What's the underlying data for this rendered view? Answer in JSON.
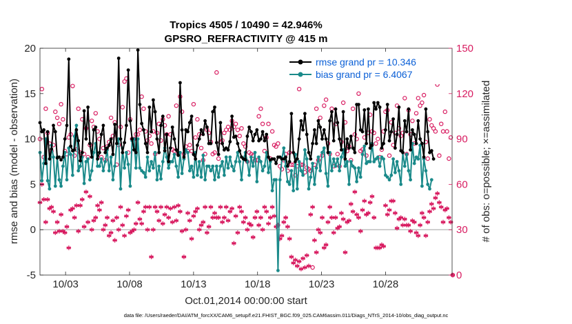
{
  "chart_data": {
    "type": "line",
    "title": "Tropics 4505 / 10490 = 42.946%",
    "subtitle": "GPSRO_REFRACTIVITY @ 415 m",
    "xlabel": "Oct.01,2014 00:00:00 start",
    "ylabel": "rmse and bias (model - observation)",
    "y2label": "# of obs: o=possible; ×=assimilated",
    "footnote": "data file: /Users/raeder/DAI/ATM_forcXX/CAM6_setup/f.e21.FHIST_BGC.f09_025.CAM6assim.011/Diags_NTrS_2014-10/obs_diag_output.nc",
    "xlim": [
      1,
      33.2
    ],
    "ylim": [
      -5,
      20
    ],
    "y2lim": [
      0,
      150
    ],
    "x_ticks": [
      3,
      8,
      13,
      18,
      23,
      28
    ],
    "x_tick_labels": [
      "10/03",
      "10/08",
      "10/13",
      "10/18",
      "10/23",
      "10/28"
    ],
    "y_ticks": [
      -5,
      0,
      5,
      10,
      15,
      20
    ],
    "y_tick_labels": [
      "-5",
      "0",
      "5",
      "10",
      "15",
      "20"
    ],
    "y2_ticks": [
      0,
      30,
      60,
      90,
      120,
      150
    ],
    "y2_tick_labels": [
      "0",
      "30",
      "60",
      "90",
      "120",
      "150"
    ],
    "zero_line": 0,
    "legend_location": "top-right",
    "colors": {
      "rmse": "#000000",
      "bias": "#1a8a8a",
      "obs": "#d81b60",
      "legend_text": "#0a5fd6",
      "zero_line": "#bfbfbf"
    },
    "series": [
      {
        "name": "rmse grand pr = 10.346",
        "key": "rmse",
        "values": [
          11.8,
          10.8,
          11.0,
          7.3,
          10.8,
          7.8,
          8.9,
          11.5,
          10.8,
          7.9,
          8.0,
          7.7,
          8.0,
          10.0,
          11.5,
          18.8,
          9.2,
          8.7,
          8.8,
          11.0,
          9.8,
          7.6,
          8.5,
          13.1,
          10.0,
          13.5,
          9.5,
          8.0,
          11.0,
          11.3,
          7.8,
          8.5,
          10.5,
          11.5,
          8.5,
          9.0,
          9.3,
          10.0,
          8.3,
          11.6,
          9.5,
          18.9,
          10.0,
          8.5,
          9.6,
          11.5,
          17.6,
          12.0,
          10.0,
          8.8,
          8.5,
          19.8,
          13.8,
          11.7,
          11.0,
          9.5,
          8.5,
          13.5,
          10.8,
          14.3,
          13.0,
          10.0,
          8.5,
          11.5,
          12.5,
          8.7,
          10.5,
          7.5,
          9.0,
          11.3,
          10.0,
          8.8,
          8.2,
          16.2,
          11.0,
          8.0,
          11.0,
          10.8,
          11.8,
          12.5,
          8.3,
          7.8,
          9.3,
          10.0,
          11.0,
          10.5,
          12.0,
          11.3,
          9.5,
          9.5,
          13.0,
          13.5,
          9.6,
          8.3,
          11.8,
          9.5,
          8.8,
          9.0,
          8.8,
          9.7,
          12.5,
          10.2,
          10.3,
          9.5,
          8.7,
          8.0,
          7.8,
          7.7,
          10.3,
          11.3,
          10.8,
          9.8,
          10.5,
          11.0,
          9.8,
          10.0,
          10.8,
          9.8,
          10.5,
          8.0,
          7.7,
          7.8,
          7.8,
          7.3,
          8.0,
          8.0,
          7.8,
          7.8,
          8.0,
          7.0,
          7.5,
          12.8,
          8.5,
          7.5,
          7.8,
          10.0,
          12.0,
          11.0,
          12.8,
          10.5,
          8.5,
          7.8,
          9.5,
          11.0,
          9.5,
          12.0,
          11.3,
          10.0,
          11.0,
          10.0,
          8.5,
          12.0,
          13.0,
          9.8,
          13.3,
          11.8,
          10.0,
          8.8,
          13.0,
          7.8,
          10.0,
          9.0,
          10.3,
          9.0,
          8.5,
          13.8,
          13.8,
          11.0,
          10.8,
          13.2,
          9.5,
          13.3,
          9.0,
          9.3,
          14.0,
          13.3,
          14.0,
          13.5,
          9.0,
          9.5,
          11.0,
          13.8,
          9.8,
          10.8,
          12.2,
          9.0,
          10.5,
          13.5,
          8.7,
          8.5,
          12.0,
          10.8,
          13.3,
          8.8,
          11.0,
          10.5,
          9.5,
          12.0,
          10.0,
          9.5,
          8.0,
          13.3,
          10.8,
          8.5,
          8.7,
          7.8
        ]
      },
      {
        "name": "bias grand pr = 6.4067",
        "key": "bias",
        "values": [
          8.5,
          5.4,
          7.3,
          10.0,
          5.4,
          4.5,
          9.3,
          8.0,
          4.8,
          8.0,
          5.5,
          4.8,
          7.0,
          8.5,
          5.5,
          9.0,
          8.3,
          6.0,
          10.3,
          11.5,
          6.5,
          7.0,
          8.0,
          5.1,
          7.5,
          7.8,
          5.5,
          6.5,
          8.5,
          9.5,
          7.0,
          7.0,
          7.8,
          6.5,
          7.5,
          8.8,
          6.5,
          8.0,
          5.5,
          7.0,
          9.5,
          10.0,
          4.5,
          9.0,
          6.8,
          8.5,
          7.2,
          4.8,
          9.8,
          10.0,
          6.8,
          10.0,
          6.8,
          6.5,
          6.3,
          5.8,
          8.0,
          6.5,
          7.5,
          6.8,
          8.5,
          5.5,
          7.0,
          5.6,
          7.5,
          9.0,
          8.0,
          6.8,
          7.5,
          7.5,
          8.3,
          7.0,
          5.8,
          8.5,
          6.2,
          7.8,
          8.8,
          8.5,
          6.5,
          7.0,
          5.8,
          8.5,
          6.0,
          7.5,
          5.8,
          8.2,
          5.5,
          7.0,
          7.0,
          6.5,
          7.0,
          5.5,
          7.0,
          5.8,
          7.0,
          7.5,
          6.0,
          8.0,
          6.8,
          8.0,
          7.0,
          6.5,
          7.5,
          8.5,
          7.5,
          5.5,
          7.8,
          8.5,
          7.5,
          6.0,
          8.0,
          7.0,
          8.5,
          5.3,
          8.0,
          7.5,
          6.5,
          7.0,
          8.5,
          6.3,
          7.5,
          4.3,
          5.5,
          5.5,
          -4.5,
          5.5,
          7.8,
          9.0,
          7.0,
          5.3,
          5.0,
          6.5,
          4.3,
          8.3,
          4.5,
          7.5,
          6.5,
          6.0,
          8.8,
          7.8,
          4.5,
          5.8,
          7.3,
          5.0,
          6.8,
          8.0,
          6.5,
          8.5,
          9.0,
          6.2,
          4.8,
          8.5,
          6.5,
          7.8,
          7.0,
          7.8,
          6.5,
          8.0,
          8.8,
          7.0,
          7.5,
          5.0,
          7.5,
          7.0,
          6.8,
          5.3,
          6.8,
          5.8,
          8.3,
          9.2,
          7.3,
          7.5,
          7.5,
          9.5,
          7.5,
          7.8,
          8.0,
          7.0,
          8.0,
          7.8,
          6.0,
          5.8,
          5.5,
          6.0,
          7.8,
          6.3,
          7.5,
          6.5,
          5.0,
          8.5,
          7.0,
          8.3,
          6.5,
          5.5,
          9.5,
          7.3,
          8.0,
          7.8,
          9.3,
          4.8,
          7.8,
          6.5,
          5.0,
          4.5,
          5.5
        ]
      },
      {
        "name": "possible obs",
        "key": "possible",
        "axis": "right",
        "values": [
          90,
          123,
          78,
          110,
          94,
          87,
          82,
          86,
          108,
          104,
          100,
          113,
          103,
          82,
          80,
          91,
          93,
          125,
          79,
          83,
          110,
          81,
          103,
          80,
          97,
          78,
          86,
          102,
          98,
          107,
          95,
          90,
          78,
          84,
          76,
          85,
          88,
          104,
          92,
          101,
          73,
          86,
          98,
          111,
          128,
          130,
          81,
          103,
          90,
          90,
          93,
          93,
          96,
          118,
          110,
          95,
          89,
          92,
          87,
          95,
          80,
          94,
          100,
          89,
          103,
          99,
          93,
          105,
          93,
          83,
          82,
          112,
          80,
          118,
          108,
          80,
          85,
          82,
          86,
          82,
          113,
          91,
          103,
          93,
          84,
          76,
          80,
          96,
          94,
          88,
          80,
          81,
          134,
          77,
          88,
          89,
          94,
          96,
          98,
          96,
          102,
          98,
          100,
          96,
          92,
          97,
          87,
          85,
          75,
          81,
          80,
          79,
          76,
          76,
          105,
          110,
          100,
          82,
          91,
          100,
          77,
          95,
          86,
          85,
          87,
          72,
          70,
          76,
          80,
          69,
          81,
          73,
          73,
          66,
          72,
          123,
          73,
          73,
          68,
          71,
          70,
          69,
          5,
          73,
          110,
          76,
          104,
          79,
          112,
          116,
          87,
          80,
          110,
          72,
          100,
          80,
          72,
          88,
          114,
          101,
          82,
          85,
          76,
          110,
          93,
          90,
          120,
          82,
          83,
          91,
          79,
          94,
          106,
          95,
          94,
          87,
          90,
          78,
          83,
          95,
          108,
          109,
          79,
          101,
          86,
          94,
          112,
          97,
          92,
          94,
          117,
          80,
          109,
          93,
          102,
          87,
          107,
          117,
          112,
          114,
          119,
          88,
          77,
          103,
          99,
          97,
          95,
          126,
          79,
          100,
          95,
          108,
          95,
          77,
          91,
          0
        ]
      },
      {
        "name": "assimilated obs",
        "key": "assimilated",
        "axis": "right",
        "values": [
          48,
          60,
          50,
          35,
          50,
          44,
          45,
          42,
          28,
          35,
          29,
          40,
          29,
          28,
          32,
          18,
          43,
          44,
          38,
          46,
          29,
          46,
          50,
          32,
          55,
          35,
          52,
          30,
          36,
          38,
          46,
          43,
          48,
          30,
          33,
          38,
          26,
          28,
          36,
          23,
          38,
          30,
          45,
          33,
          26,
          39,
          43,
          28,
          29,
          30,
          34,
          48,
          37,
          34,
          42,
          45,
          30,
          45,
          12,
          30,
          45,
          42,
          36,
          45,
          34,
          40,
          45,
          38,
          44,
          35,
          45,
          36,
          46,
          42,
          29,
          12,
          30,
          41,
          36,
          24,
          39,
          42,
          44,
          30,
          33,
          35,
          45,
          28,
          32,
          45,
          38,
          41,
          38,
          38,
          45,
          35,
          38,
          45,
          36,
          42,
          44,
          21,
          39,
          28,
          45,
          42,
          35,
          38,
          30,
          34,
          33,
          25,
          38,
          42,
          33,
          38,
          30,
          45,
          42,
          34,
          38,
          45,
          39,
          32,
          33,
          24,
          26,
          35,
          38,
          32,
          24,
          12,
          8,
          10,
          6,
          9,
          4,
          11,
          5,
          13,
          6,
          40,
          45,
          23,
          15,
          30,
          28,
          38,
          18,
          20,
          35,
          45,
          38,
          28,
          38,
          31,
          32,
          41,
          37,
          15,
          35,
          36,
          47,
          42,
          55,
          40,
          38,
          29,
          43,
          49,
          40,
          41,
          48,
          52,
          38,
          18,
          18,
          18,
          20,
          19,
          46,
          40,
          43,
          49,
          49,
          41,
          31,
          37,
          38,
          33,
          37,
          33,
          33,
          29,
          36,
          35,
          28,
          26,
          33,
          41,
          38,
          26,
          35,
          42,
          47,
          44,
          51,
          54,
          48,
          45,
          35,
          43,
          44,
          38,
          35,
          0
        ]
      }
    ]
  }
}
